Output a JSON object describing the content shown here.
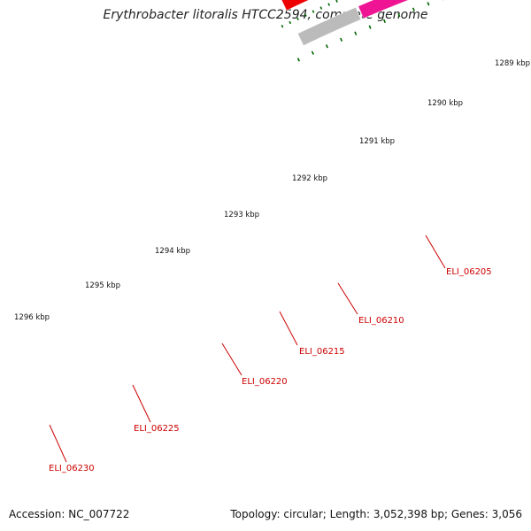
{
  "title": "Erythrobacter litoralis HTCC2594, complete genome",
  "footer": {
    "accession": "Accession: NC_007722",
    "summary": "Topology: circular; Length: 3,052,398 bp; Genes: 3,056"
  },
  "colors": {
    "backbone": "#808080",
    "forward_gene": "#ee0000",
    "reverse_olive": "#6b8e23",
    "reverse_magenta": "#ee1493",
    "reverse_salmon": "#f08080",
    "reverse_cyan": "#00bfff",
    "reverse_gray": "#bbbbbb",
    "ticks": "#006400",
    "label": "#cc0000"
  },
  "kbp_labels": [
    "1289 kbp",
    "1290 kbp",
    "1291 kbp",
    "1292 kbp",
    "1293 kbp",
    "1294 kbp",
    "1295 kbp",
    "1296 kbp"
  ],
  "genes": [
    {
      "locus": "ELI_06205"
    },
    {
      "locus": "ELI_06210"
    },
    {
      "locus": "ELI_06215"
    },
    {
      "locus": "ELI_06220"
    },
    {
      "locus": "ELI_06225"
    },
    {
      "locus": "ELI_06230"
    }
  ]
}
